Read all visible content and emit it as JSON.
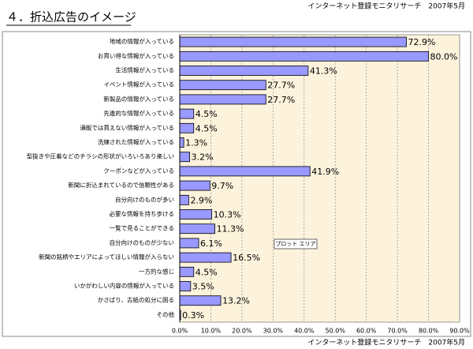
{
  "chart_data": {
    "type": "bar",
    "orientation": "horizontal",
    "title": "４．折込広告のイメージ",
    "source_top": "インターネット登録モニタリサーチ　2007年5月",
    "source_bottom": "インターネット登録モニタリサーチ　2007年5月",
    "annotation": "プロット エリア",
    "categories": [
      "地域の情報が入っている",
      "お買い得な情報が入っている",
      "生活情報が入っている",
      "イベント情報が入っている",
      "新製品の情報が入っている",
      "先進的な情報が入っている",
      "通販では買えない情報が入っている",
      "洗練された情報が入っている",
      "型抜きや圧着などのチラシの形状がいろいろあり楽しい",
      "クーポンなどが入っている",
      "新聞に折込まれているので信頼性がある",
      "自分向けのものが多い",
      "必要な情報を持ち歩ける",
      "一覧で見ることができる",
      "自分向けのものが少ない",
      "新聞の銘柄やエリアによってほしい情報が入らない",
      "一方的な感じ",
      "いかがわしい内容の情報が入っている",
      "かさばり、古紙の処分に困る",
      "その他"
    ],
    "values": [
      72.9,
      80.0,
      41.3,
      27.7,
      27.7,
      4.5,
      4.5,
      1.3,
      3.2,
      41.9,
      9.7,
      2.9,
      10.3,
      11.3,
      6.1,
      16.5,
      4.5,
      3.5,
      13.2,
      0.3
    ],
    "value_labels": [
      "72.9%",
      "80.0%",
      "41.3%",
      "27.7%",
      "27.7%",
      "4.5%",
      "4.5%",
      "1.3%",
      "3.2%",
      "41.9%",
      "9.7%",
      "2.9%",
      "10.3%",
      "11.3%",
      "6.1%",
      "16.5%",
      "4.5%",
      "3.5%",
      "13.2%",
      "0.3%"
    ],
    "color": "#9999ff",
    "xlim": [
      0,
      90
    ],
    "xticks": [
      {
        "value": 0,
        "label": "0.0%"
      },
      {
        "value": 10,
        "label": "10.0%"
      },
      {
        "value": 20,
        "label": "20.0%"
      },
      {
        "value": 30,
        "label": "30.0%"
      },
      {
        "value": 40,
        "label": "40.0%"
      },
      {
        "value": 50,
        "label": "50.0%"
      },
      {
        "value": 60,
        "label": "60.0%"
      },
      {
        "value": 70,
        "label": "70.0%"
      },
      {
        "value": 80,
        "label": "80.0%"
      },
      {
        "value": 90,
        "label": "90.0%"
      }
    ],
    "grid": true
  }
}
